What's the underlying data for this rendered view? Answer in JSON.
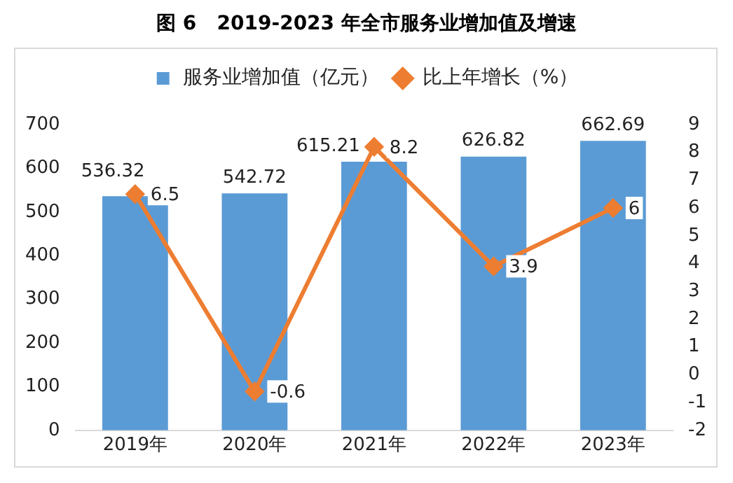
{
  "chart_data": {
    "type": "bar",
    "title": "图 6   2019-2023 年全市服务业增加值及增速",
    "categories": [
      "2019年",
      "2020年",
      "2021年",
      "2022年",
      "2023年"
    ],
    "series": [
      {
        "name": "服务业增加值（亿元）",
        "color": "#5b9bd5",
        "values": [
          536.32,
          542.72,
          615.21,
          626.82,
          662.69
        ]
      },
      {
        "name": "比上年增长（%）",
        "type": "line",
        "axis": "y2",
        "color": "#ed7d31",
        "values": [
          6.5,
          -0.6,
          8.2,
          3.9,
          6
        ]
      }
    ],
    "ylim": [
      0,
      700
    ],
    "yticks": [
      0,
      100,
      200,
      300,
      400,
      500,
      600,
      700
    ],
    "y2lim": [
      -2,
      9
    ],
    "y2ticks": [
      -2,
      -1,
      0,
      1,
      2,
      3,
      4,
      5,
      6,
      7,
      8,
      9
    ],
    "data_labels": true,
    "legend": "top",
    "grid": false,
    "marker": "diamond",
    "line_style": "solid"
  }
}
